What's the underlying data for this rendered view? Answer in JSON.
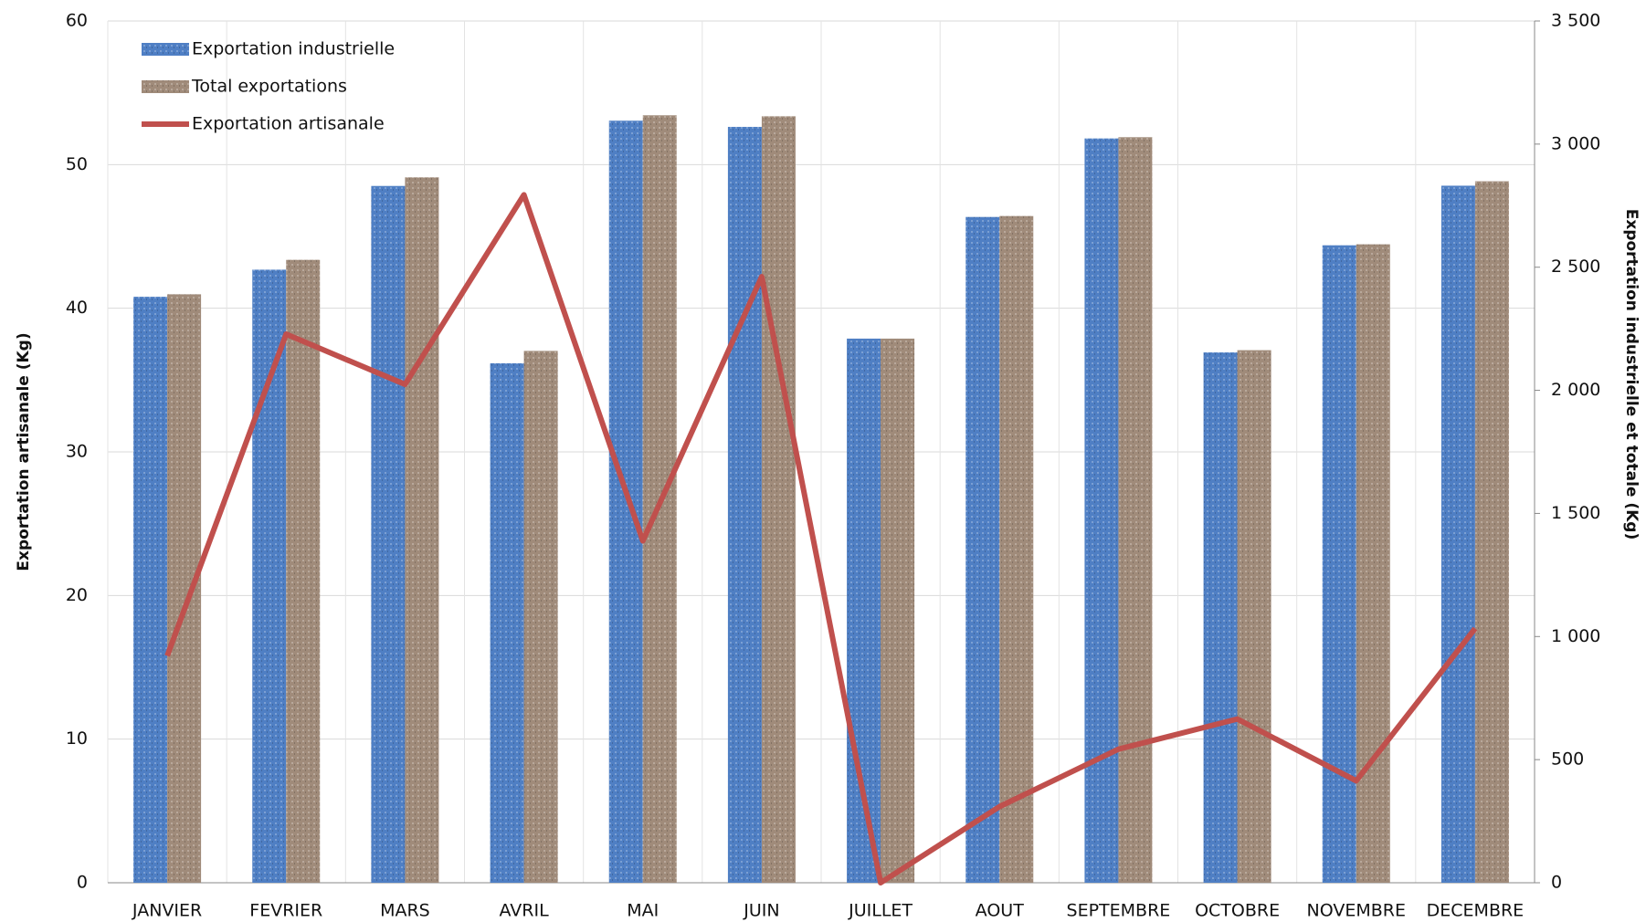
{
  "chart_data": {
    "type": "bar",
    "categories": [
      "JANVIER",
      "FEVRIER",
      "MARS",
      "AVRIL",
      "MAI",
      "JUIN",
      "JUILLET",
      "AOUT",
      "SEPTEMBRE",
      "OCTOBRE",
      "NOVEMBRE",
      "DECEMBRE"
    ],
    "series": [
      {
        "name": "Exportation industrielle",
        "type": "bar",
        "axis": "y2",
        "color": "#4f7fc4",
        "values": [
          2380,
          2490,
          2830,
          2110,
          3095,
          3070,
          2210,
          2704,
          3023,
          2154,
          2589,
          2831
        ]
      },
      {
        "name": "Total exportations",
        "type": "bar",
        "axis": "y2",
        "color": "#a08b7a",
        "values": [
          2390,
          2530,
          2865,
          2160,
          3117,
          3113,
          2210,
          2708,
          3028,
          2163,
          2593,
          2849
        ]
      },
      {
        "name": "Exportation artisanale",
        "type": "line",
        "color": "#c0504d",
        "values": [
          15.8,
          38.2,
          34.7,
          47.9,
          23.8,
          42.2,
          0,
          5.3,
          9.3,
          11.4,
          7.1,
          17.7
        ]
      }
    ],
    "ylabel": "Exportation artisanale (Kg)",
    "y2label": "Exportation industrielle et totale (Kg)",
    "ylim": [
      0,
      60
    ],
    "yticks": [
      0,
      10,
      20,
      30,
      40,
      50,
      60
    ],
    "y2lim": [
      0,
      3500
    ],
    "y2ticks": [
      0,
      500,
      {
        "value": 1000,
        "label": "1 000"
      },
      {
        "value": 1500,
        "label": "1 500"
      },
      {
        "value": 2000,
        "label": "2 000"
      },
      {
        "value": 2500,
        "label": "2 500"
      },
      {
        "value": 3000,
        "label": "3 000"
      },
      {
        "value": 3500,
        "label": "3 500"
      }
    ],
    "grid": true,
    "legend": "upper left"
  }
}
